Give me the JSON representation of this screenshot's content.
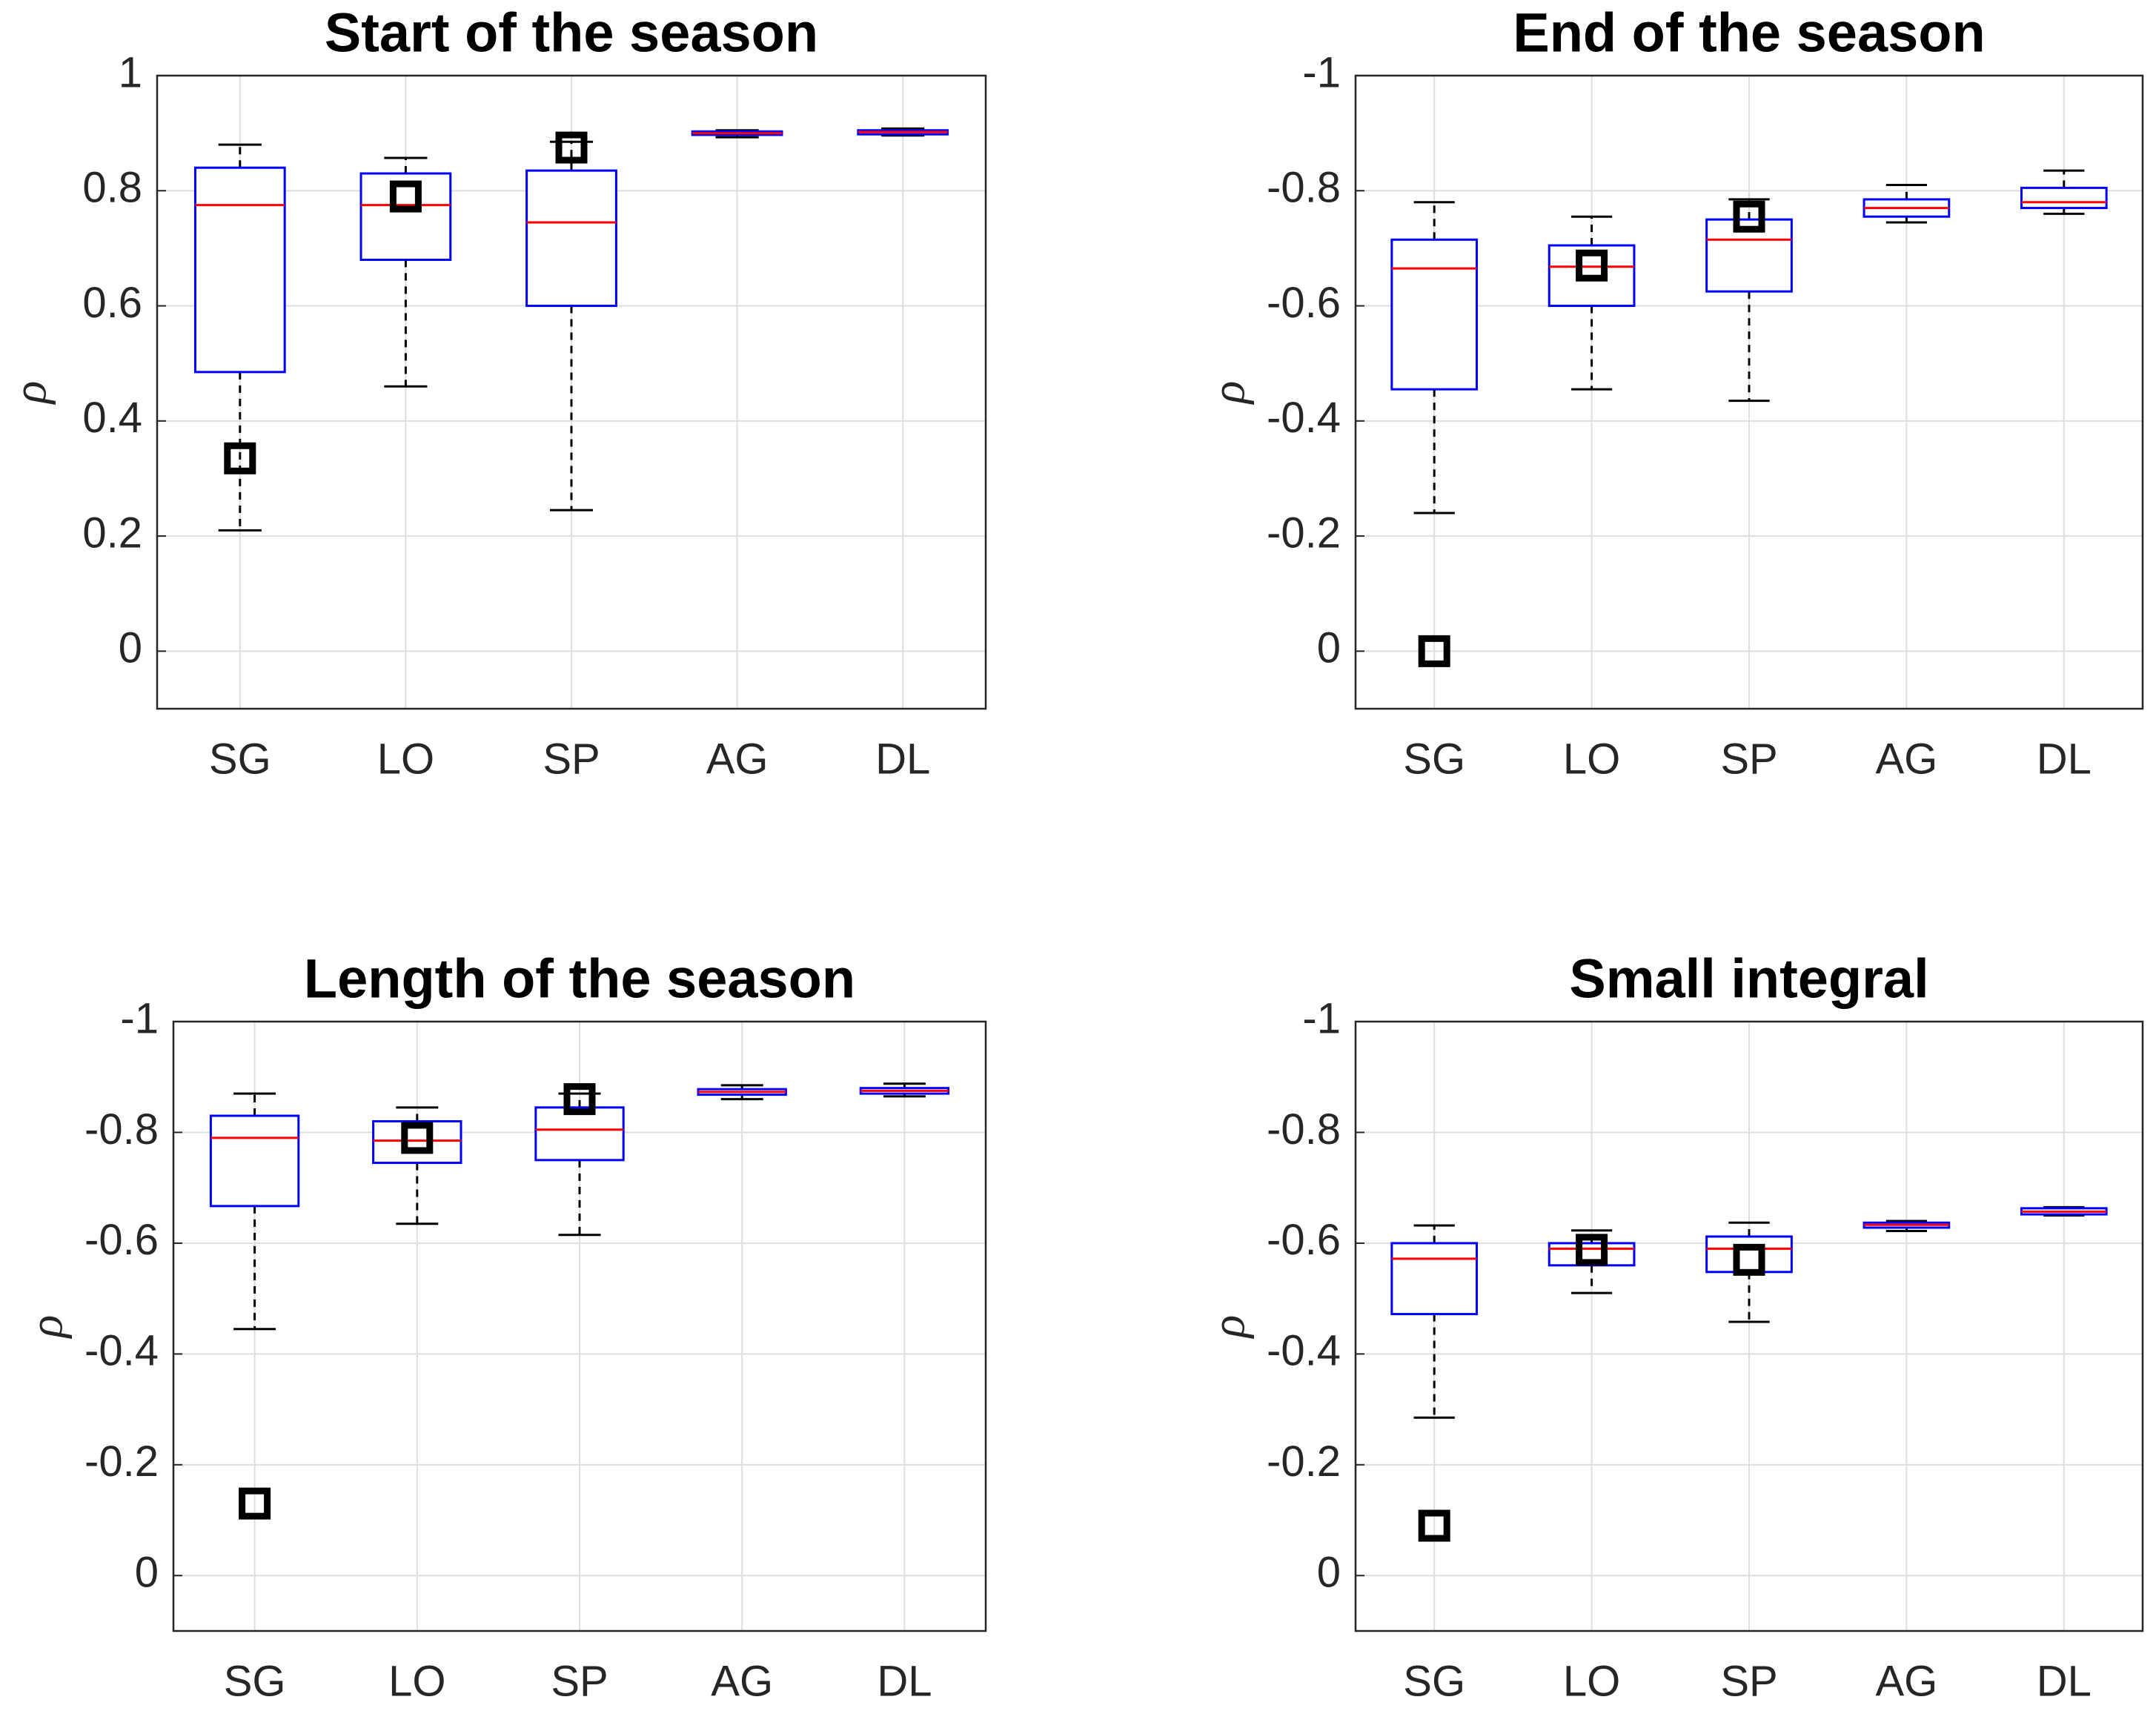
{
  "chart_data": [
    {
      "type": "box",
      "title": "Start of the season",
      "y_label": "ρ",
      "categories": [
        "SG",
        "LO",
        "SP",
        "AG",
        "DL"
      ],
      "whisker_low": [
        0.21,
        0.46,
        0.245,
        0.893,
        0.896
      ],
      "q1": [
        0.485,
        0.68,
        0.6,
        0.897,
        0.898
      ],
      "median": [
        0.775,
        0.775,
        0.745,
        0.9,
        0.902
      ],
      "q3": [
        0.84,
        0.83,
        0.835,
        0.903,
        0.905
      ],
      "whisker_high": [
        0.88,
        0.857,
        0.885,
        0.905,
        0.908
      ],
      "markers": [
        0.335,
        0.79,
        0.875,
        null,
        null
      ],
      "ylim": [
        -0.1,
        1
      ],
      "yticks": [
        0,
        0.2,
        0.4,
        0.6,
        0.8,
        1
      ],
      "y_reversed": false,
      "grid": true,
      "box_color": "#0000ff",
      "median_color": "#ff0000",
      "whisker_color": "#000000",
      "marker_color": "#000000"
    },
    {
      "type": "box",
      "title": "End of the season",
      "y_label": "ρ",
      "categories": [
        "SG",
        "LO",
        "SP",
        "AG",
        "DL"
      ],
      "whisker_low": [
        -0.24,
        -0.455,
        -0.435,
        -0.745,
        -0.76
      ],
      "q1": [
        -0.455,
        -0.6,
        -0.625,
        -0.755,
        -0.77
      ],
      "median": [
        -0.665,
        -0.668,
        -0.715,
        -0.77,
        -0.78
      ],
      "q3": [
        -0.715,
        -0.705,
        -0.75,
        -0.785,
        -0.805
      ],
      "whisker_high": [
        -0.78,
        -0.755,
        -0.785,
        -0.81,
        -0.835
      ],
      "markers": [
        0,
        -0.67,
        -0.755,
        null,
        null
      ],
      "ylim": [
        -1,
        0.1
      ],
      "yticks": [
        -1,
        -0.8,
        -0.6,
        -0.4,
        -0.2,
        0
      ],
      "y_reversed": true,
      "grid": true,
      "box_color": "#0000ff",
      "median_color": "#ff0000",
      "whisker_color": "#000000",
      "marker_color": "#000000"
    },
    {
      "type": "box",
      "title": "Length of the season",
      "y_label": "ρ",
      "categories": [
        "SG",
        "LO",
        "SP",
        "AG",
        "DL"
      ],
      "whisker_low": [
        -0.445,
        -0.635,
        -0.615,
        -0.86,
        -0.865
      ],
      "q1": [
        -0.667,
        -0.745,
        -0.75,
        -0.868,
        -0.87
      ],
      "median": [
        -0.79,
        -0.785,
        -0.805,
        -0.873,
        -0.875
      ],
      "q3": [
        -0.83,
        -0.82,
        -0.845,
        -0.878,
        -0.88
      ],
      "whisker_high": [
        -0.87,
        -0.845,
        -0.87,
        -0.885,
        -0.888
      ],
      "markers": [
        -0.13,
        -0.79,
        -0.86,
        null,
        null
      ],
      "ylim": [
        -1,
        0.1
      ],
      "yticks": [
        -1,
        -0.8,
        -0.6,
        -0.4,
        -0.2,
        0
      ],
      "y_reversed": true,
      "grid": true,
      "box_color": "#0000ff",
      "median_color": "#ff0000",
      "whisker_color": "#000000",
      "marker_color": "#000000"
    },
    {
      "type": "box",
      "title": "Small integral",
      "y_label": "ρ",
      "categories": [
        "SG",
        "LO",
        "SP",
        "AG",
        "DL"
      ],
      "whisker_low": [
        -0.285,
        -0.51,
        -0.458,
        -0.622,
        -0.65
      ],
      "q1": [
        -0.472,
        -0.56,
        -0.548,
        -0.628,
        -0.652
      ],
      "median": [
        -0.572,
        -0.59,
        -0.59,
        -0.633,
        -0.657
      ],
      "q3": [
        -0.6,
        -0.6,
        -0.612,
        -0.637,
        -0.663
      ],
      "whisker_high": [
        -0.632,
        -0.623,
        -0.637,
        -0.64,
        -0.665
      ],
      "markers": [
        -0.09,
        -0.588,
        -0.57,
        null,
        null
      ],
      "ylim": [
        -1,
        0.1
      ],
      "yticks": [
        -1,
        -0.8,
        -0.6,
        -0.4,
        -0.2,
        0
      ],
      "y_reversed": true,
      "grid": true,
      "box_color": "#0000ff",
      "median_color": "#ff0000",
      "whisker_color": "#000000",
      "marker_color": "#000000"
    }
  ]
}
